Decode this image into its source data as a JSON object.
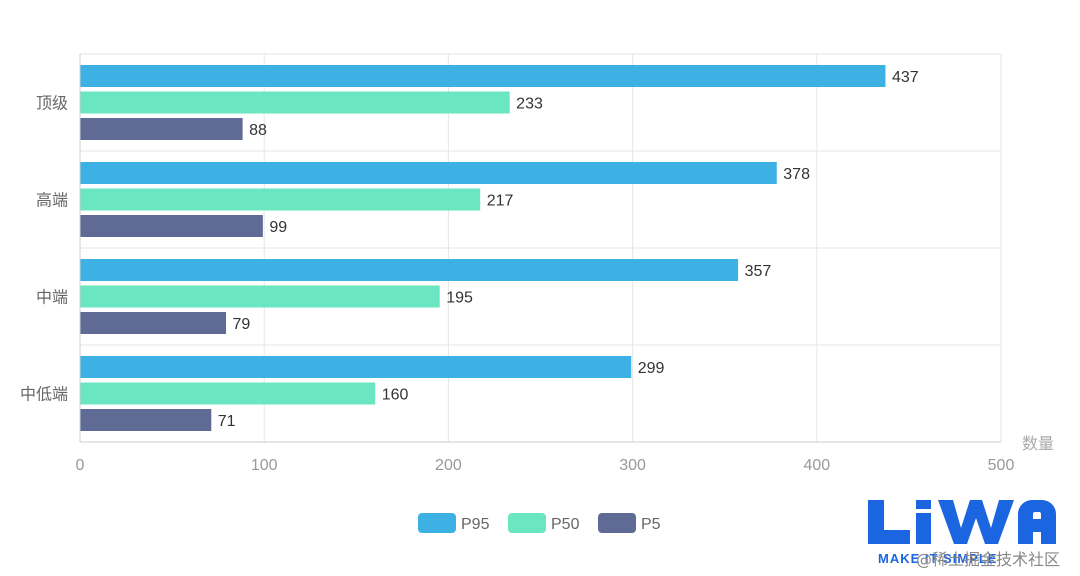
{
  "chart_data": {
    "type": "bar",
    "orientation": "horizontal",
    "categories": [
      "顶级",
      "高端",
      "中端",
      "中低端"
    ],
    "series": [
      {
        "name": "P95",
        "values": [
          437,
          378,
          357,
          299
        ],
        "color": "#3eb1e4"
      },
      {
        "name": "P50",
        "values": [
          233,
          217,
          195,
          160
        ],
        "color": "#6ae6c0"
      },
      {
        "name": "P5",
        "values": [
          88,
          99,
          79,
          71
        ],
        "color": "#5f6b95"
      }
    ],
    "xlabel": "数量",
    "xlim": [
      0,
      500
    ],
    "xticks": [
      0,
      100,
      200,
      300,
      400,
      500
    ],
    "grid": true,
    "legend_position": "bottom",
    "data_labels": true
  },
  "watermark": {
    "logo_text": "LiWA",
    "tagline": "MAKE IT SIMPLE",
    "caption": "@稀土掘金技术社区",
    "color": "#1b66e0"
  }
}
